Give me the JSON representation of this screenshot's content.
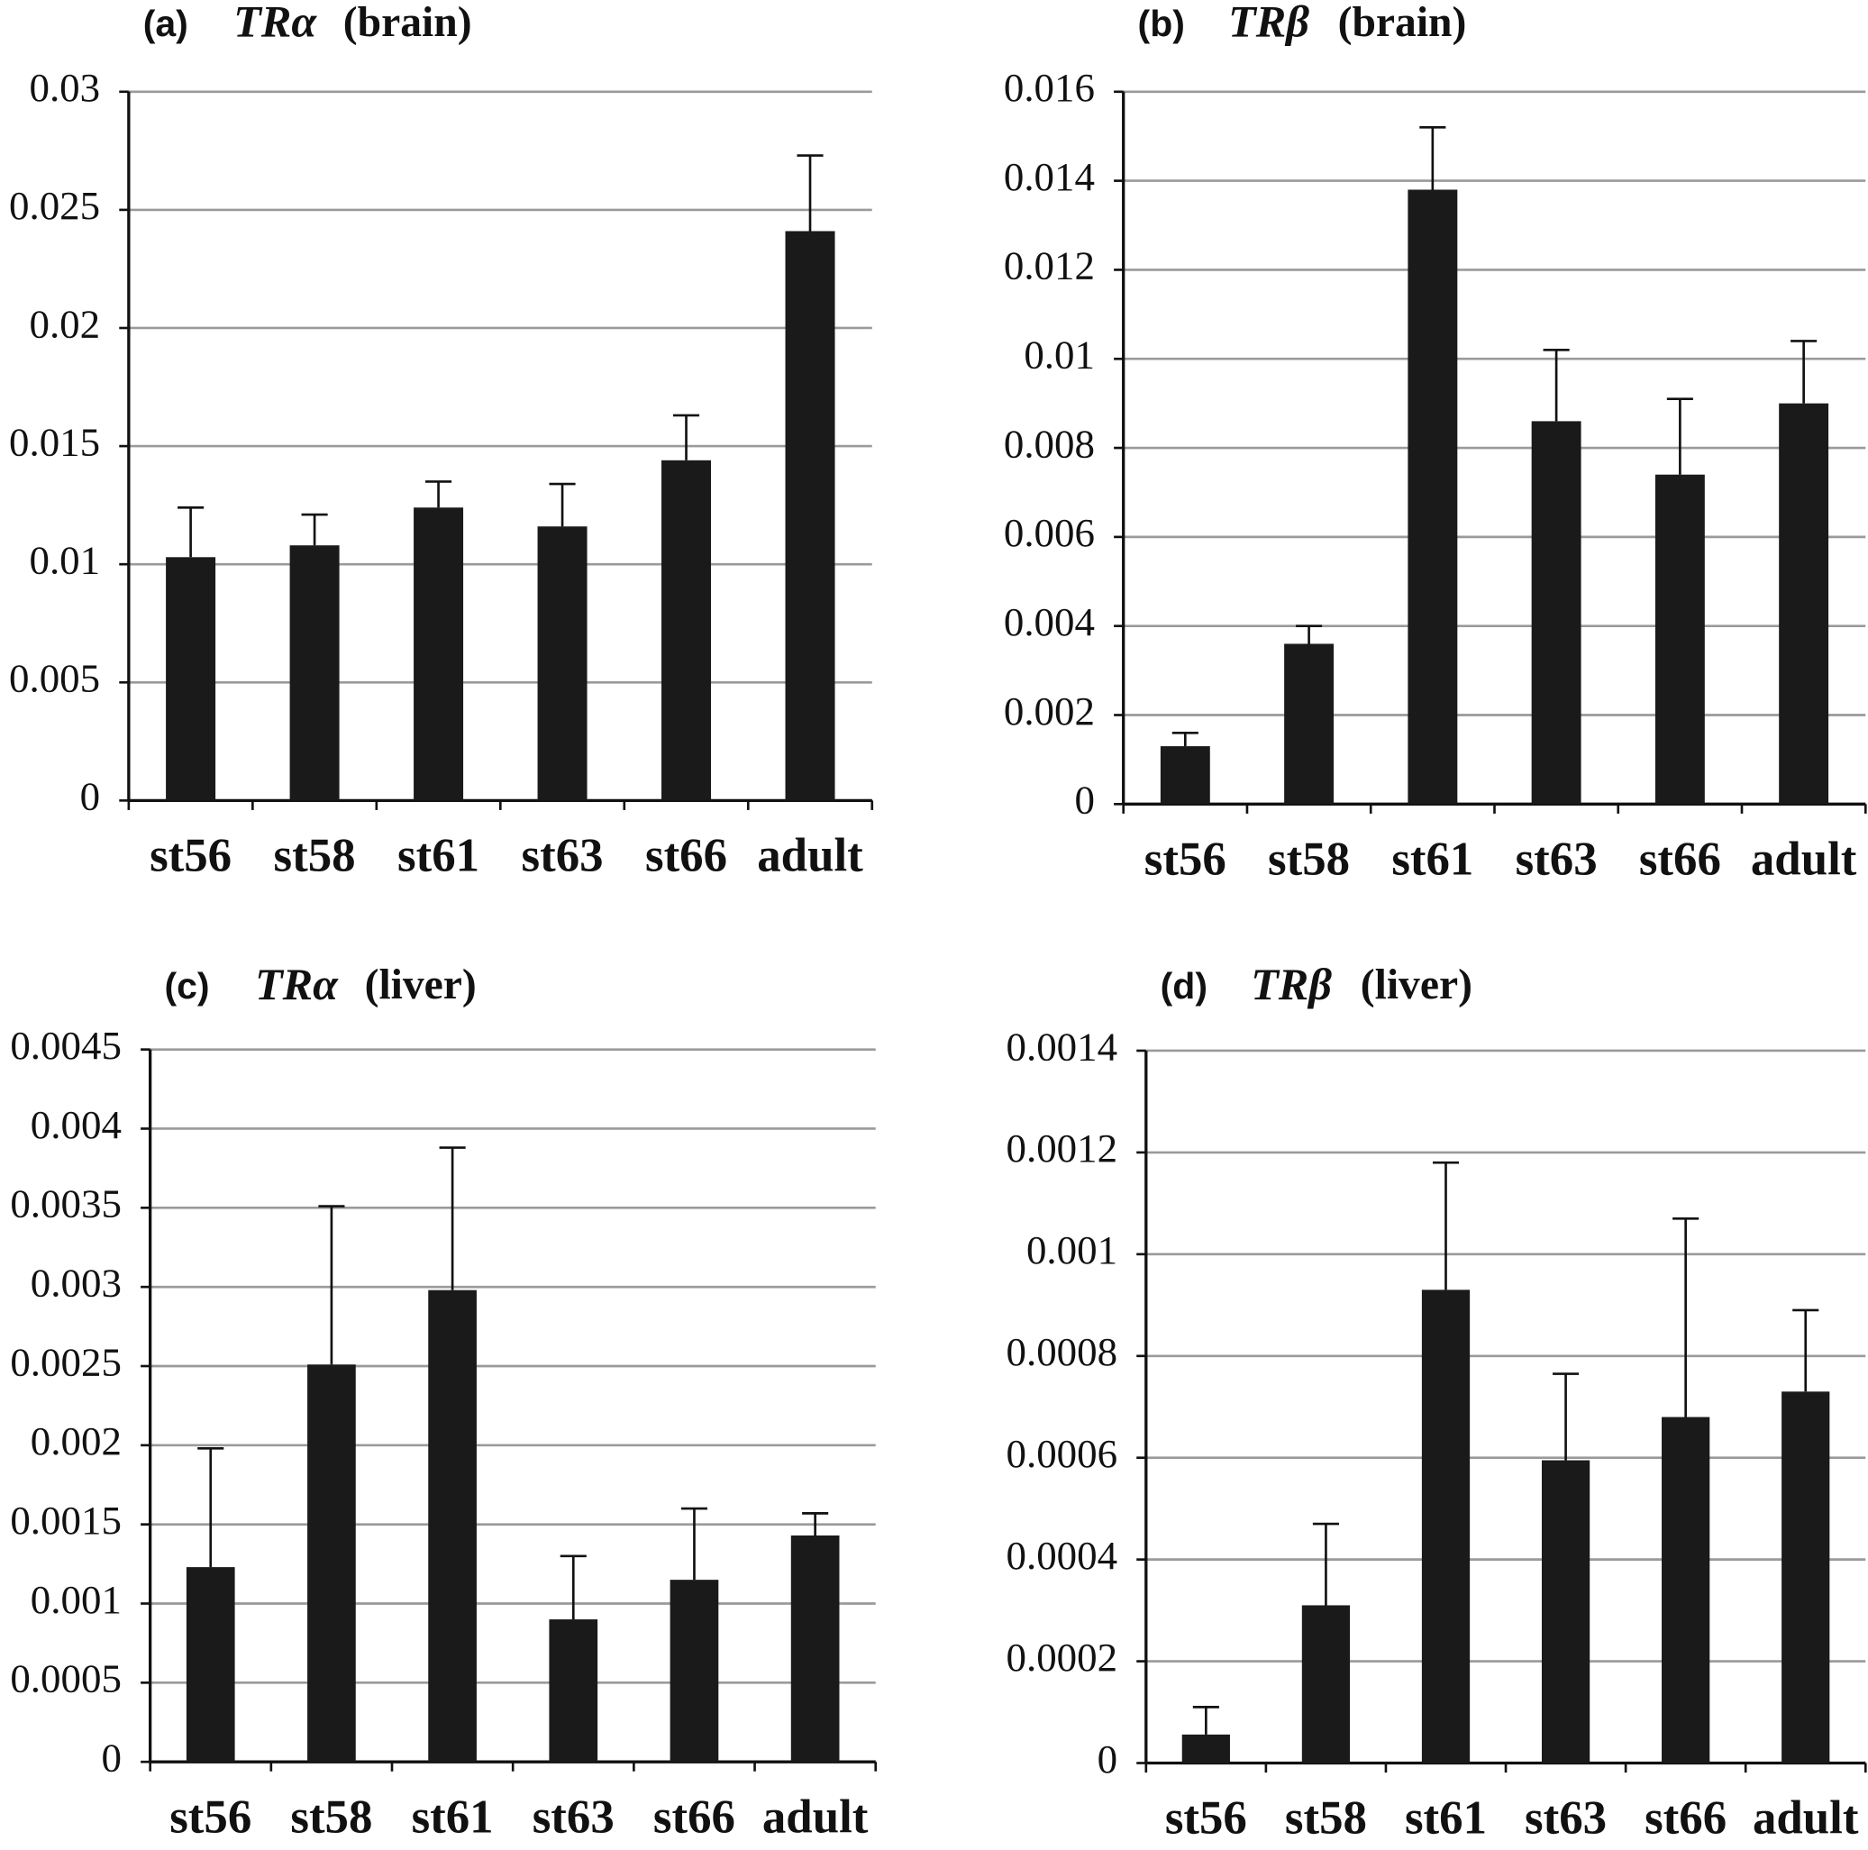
{
  "chart_data": [
    {
      "type": "bar",
      "panel": "(a)",
      "gene": "TRα",
      "tissue": "(brain)",
      "categories": [
        "st56",
        "st58",
        "st61",
        "st63",
        "st66",
        "adult"
      ],
      "values": [
        0.0103,
        0.0108,
        0.0124,
        0.0116,
        0.0144,
        0.0241
      ],
      "errors": [
        0.0021,
        0.0013,
        0.0011,
        0.0018,
        0.0019,
        0.0032
      ],
      "ylim": [
        0,
        0.03
      ],
      "yticks": [
        0,
        0.005,
        0.01,
        0.015,
        0.02,
        0.025,
        0.03
      ],
      "grid": true,
      "color": "#1a1a1a"
    },
    {
      "type": "bar",
      "panel": "(b)",
      "gene": "TRβ",
      "tissue": "(brain)",
      "categories": [
        "st56",
        "st58",
        "st61",
        "st63",
        "st66",
        "adult"
      ],
      "values": [
        0.0013,
        0.0036,
        0.0138,
        0.0086,
        0.0074,
        0.009
      ],
      "errors": [
        0.0003,
        0.0004,
        0.0014,
        0.0016,
        0.0017,
        0.0014
      ],
      "ylim": [
        0,
        0.016
      ],
      "yticks": [
        0,
        0.002,
        0.004,
        0.006,
        0.008,
        0.01,
        0.012,
        0.014,
        0.016
      ],
      "grid": true,
      "color": "#1a1a1a"
    },
    {
      "type": "bar",
      "panel": "(c)",
      "gene": "TRα",
      "tissue": "(liver)",
      "categories": [
        "st56",
        "st58",
        "st61",
        "st63",
        "st66",
        "adult"
      ],
      "values": [
        0.00123,
        0.00251,
        0.00298,
        0.0009,
        0.00115,
        0.00143
      ],
      "errors": [
        0.00075,
        0.001,
        0.0009,
        0.0004,
        0.00045,
        0.00014
      ],
      "ylim": [
        0,
        0.0045
      ],
      "yticks": [
        0,
        0.0005,
        0.001,
        0.0015,
        0.002,
        0.0025,
        0.003,
        0.0035,
        0.004,
        0.0045
      ],
      "grid": true,
      "color": "#1a1a1a"
    },
    {
      "type": "bar",
      "panel": "(d)",
      "gene": "TRβ",
      "tissue": "(liver)",
      "categories": [
        "st56",
        "st58",
        "st61",
        "st63",
        "st66",
        "adult"
      ],
      "values": [
        5.6e-05,
        0.00031,
        0.00093,
        0.000595,
        0.00068,
        0.00073
      ],
      "errors": [
        5.4e-05,
        0.00016,
        0.00025,
        0.00017,
        0.00039,
        0.00016
      ],
      "ylim": [
        0,
        0.0014
      ],
      "yticks": [
        0,
        0.0002,
        0.0004,
        0.0006,
        0.0008,
        0.001,
        0.0012,
        0.0014
      ],
      "grid": true,
      "color": "#1a1a1a"
    }
  ]
}
